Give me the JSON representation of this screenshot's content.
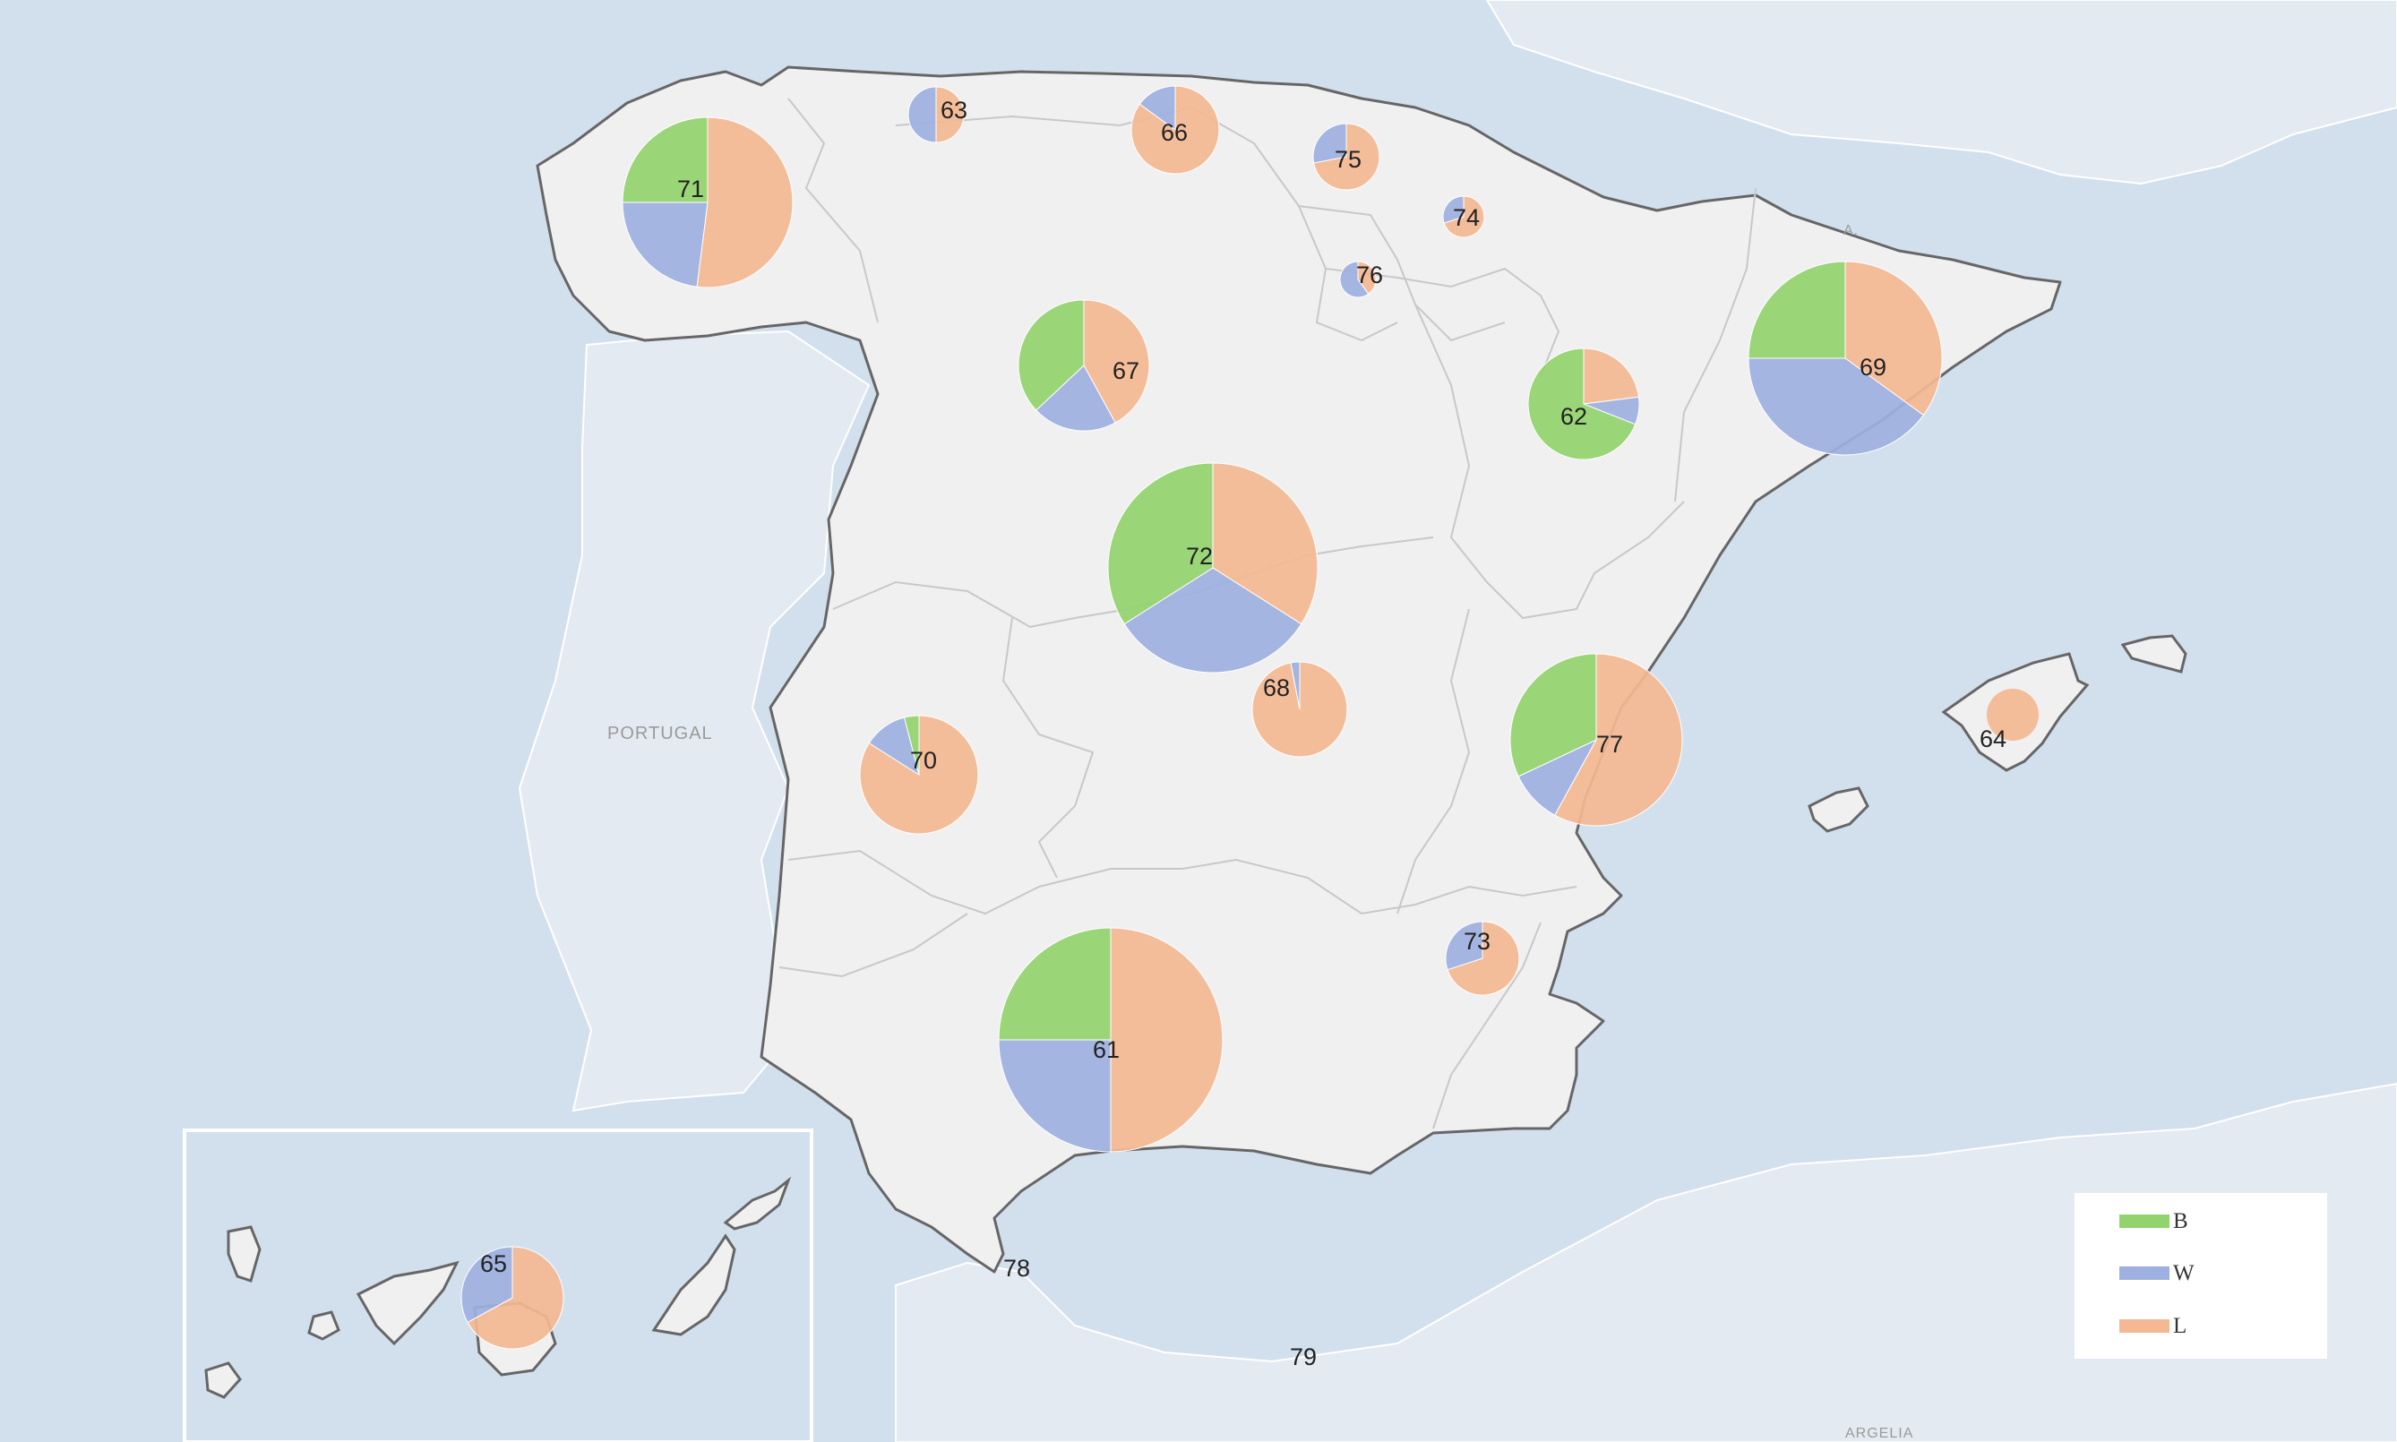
{
  "map": {
    "country_labels": {
      "portugal": "PORTUGAL",
      "andorra": "A.",
      "algeria": "ARGELIA"
    },
    "legend": [
      {
        "name": "B",
        "color": "#92d36e"
      },
      {
        "name": "W",
        "color": "#9eb0df"
      },
      {
        "name": "L",
        "color": "#f4b893"
      }
    ],
    "regions": [
      {
        "label": "71",
        "values": {
          "B": 25,
          "W": 23,
          "L": 52
        }
      },
      {
        "label": "63",
        "values": {
          "B": 0,
          "W": 50,
          "L": 50
        }
      },
      {
        "label": "66",
        "values": {
          "B": 0,
          "W": 15,
          "L": 85
        }
      },
      {
        "label": "75",
        "values": {
          "B": 0,
          "W": 28,
          "L": 72
        }
      },
      {
        "label": "74",
        "values": {
          "B": 0,
          "W": 30,
          "L": 70
        }
      },
      {
        "label": "76",
        "values": {
          "B": 0,
          "W": 60,
          "L": 40
        }
      },
      {
        "label": "67",
        "values": {
          "B": 37,
          "W": 21,
          "L": 42
        }
      },
      {
        "label": "62",
        "values": {
          "B": 69,
          "W": 8,
          "L": 23
        }
      },
      {
        "label": "69",
        "values": {
          "B": 25,
          "W": 40,
          "L": 35
        }
      },
      {
        "label": "72",
        "values": {
          "B": 34,
          "W": 32,
          "L": 34
        }
      },
      {
        "label": "70",
        "values": {
          "B": 4,
          "W": 12,
          "L": 84
        }
      },
      {
        "label": "68",
        "values": {
          "B": 0,
          "W": 3,
          "L": 97
        }
      },
      {
        "label": "77",
        "values": {
          "B": 32,
          "W": 10,
          "L": 58
        }
      },
      {
        "label": "73",
        "values": {
          "B": 0,
          "W": 30,
          "L": 70
        }
      },
      {
        "label": "61",
        "values": {
          "B": 25,
          "W": 25,
          "L": 50
        }
      },
      {
        "label": "64",
        "values": {
          "B": 0,
          "W": 0,
          "L": 100
        }
      },
      {
        "label": "65",
        "values": {
          "B": 0,
          "W": 33,
          "L": 67
        }
      },
      {
        "label": "78",
        "values": null
      },
      {
        "label": "79",
        "values": null
      }
    ]
  }
}
